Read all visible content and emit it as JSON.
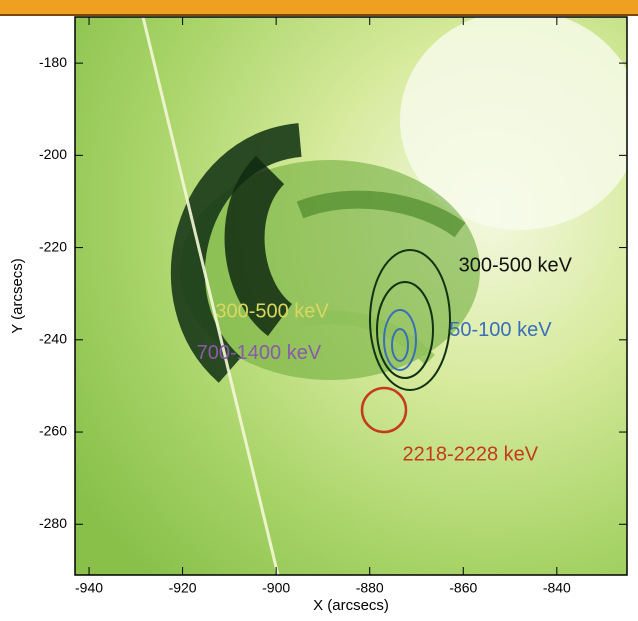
{
  "chart_data": {
    "type": "image",
    "x_label": "X (arcsecs)",
    "y_label": "Y (arcsecs)",
    "xlim": [
      -943,
      -825
    ],
    "ylim": [
      -291,
      -170
    ],
    "xticks": [
      -940,
      -920,
      -900,
      -880,
      -860,
      -840
    ],
    "yticks": [
      -280,
      -260,
      -240,
      -220,
      -200,
      -180
    ],
    "annotations": [
      {
        "text": "300-500 keV",
        "color": "#111111",
        "x": -861,
        "y": -224
      },
      {
        "text": "300-500 keV",
        "color": "#d8d860",
        "x": -913,
        "y": -234
      },
      {
        "text": "50-100 keV",
        "color": "#3a6fb8",
        "x": -863,
        "y": -238
      },
      {
        "text": "700-1400 keV",
        "color": "#8a5aa8",
        "x": -917,
        "y": -243
      },
      {
        "text": "2218-2228 keV",
        "color": "#c43a1a",
        "x": -873,
        "y": -265
      }
    ]
  }
}
